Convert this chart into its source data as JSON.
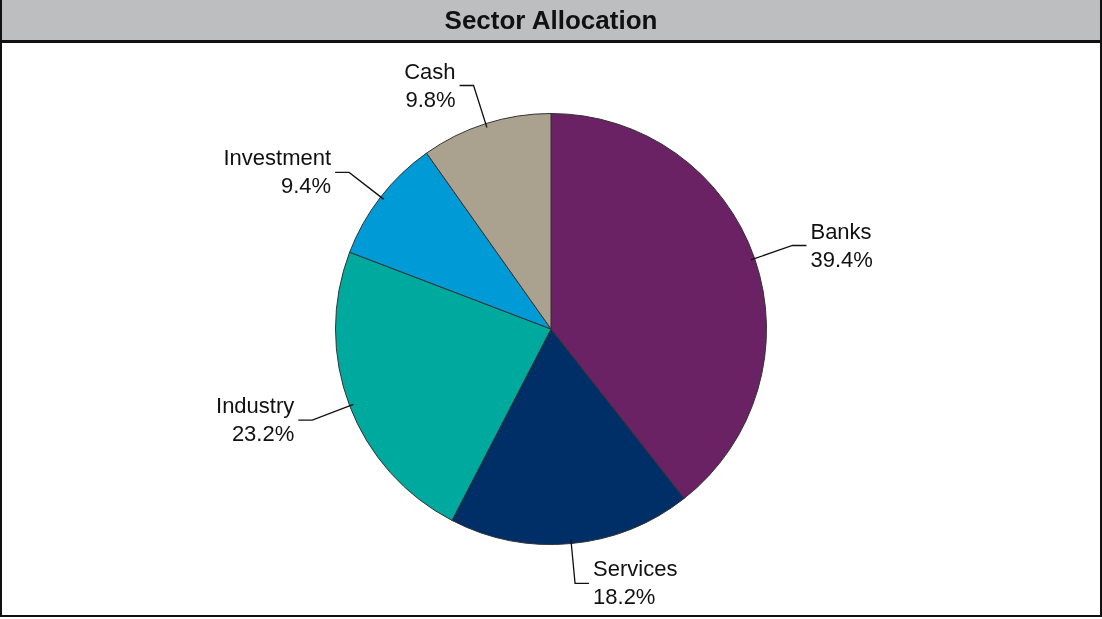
{
  "chart_data": {
    "type": "pie",
    "title": "Sector Allocation",
    "categories": [
      "Banks",
      "Services",
      "Industry",
      "Investment",
      "Cash"
    ],
    "values": [
      39.4,
      18.2,
      23.2,
      9.4,
      9.8
    ],
    "value_labels": [
      "39.4%",
      "18.2%",
      "23.2%",
      "9.4%",
      "9.8%"
    ],
    "colors": [
      "#6b2265",
      "#002e66",
      "#00a99d",
      "#009ad6",
      "#aba18f"
    ],
    "legend": false
  }
}
